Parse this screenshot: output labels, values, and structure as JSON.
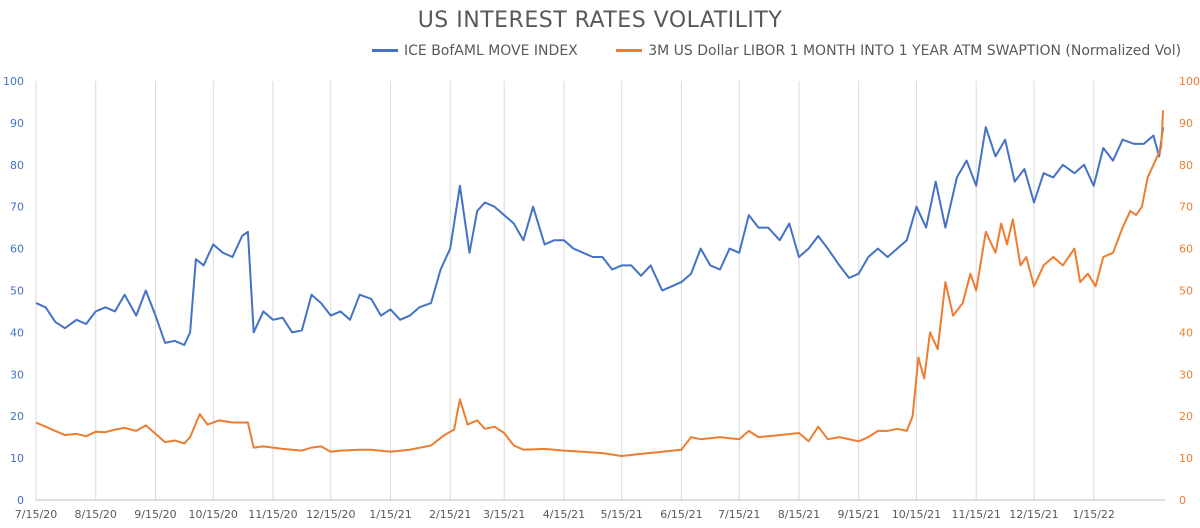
{
  "chart_data": {
    "type": "line",
    "title": "US INTEREST RATES VOLATILITY",
    "x_ticks": [
      "7/15/20",
      "8/15/20",
      "9/15/20",
      "10/15/20",
      "11/15/20",
      "12/15/20",
      "1/15/21",
      "2/15/21",
      "3/15/21",
      "4/15/21",
      "5/15/21",
      "6/15/21",
      "7/15/21",
      "8/15/21",
      "9/15/21",
      "10/15/21",
      "11/15/21",
      "12/15/21",
      "1/15/22"
    ],
    "y_left_ticks": [
      0,
      10,
      20,
      30,
      40,
      50,
      60,
      70,
      80,
      90,
      100
    ],
    "y_right_ticks": [
      0,
      10,
      20,
      30,
      40,
      50,
      60,
      70,
      80,
      90,
      100
    ],
    "ylim_left": [
      0,
      100
    ],
    "ylim_right": [
      0,
      100
    ],
    "grid": "vertical",
    "legend_position": "top",
    "series": [
      {
        "name": "ICE BofAML MOVE INDEX",
        "axis": "left",
        "color": "#4472C4",
        "points": [
          [
            "2020-07-15",
            47
          ],
          [
            "2020-07-20",
            46
          ],
          [
            "2020-07-25",
            42.5
          ],
          [
            "2020-07-30",
            41
          ],
          [
            "2020-08-05",
            43
          ],
          [
            "2020-08-10",
            42
          ],
          [
            "2020-08-15",
            45
          ],
          [
            "2020-08-20",
            46
          ],
          [
            "2020-08-25",
            45
          ],
          [
            "2020-08-30",
            49
          ],
          [
            "2020-09-05",
            44
          ],
          [
            "2020-09-10",
            50
          ],
          [
            "2020-09-15",
            44
          ],
          [
            "2020-09-20",
            37.5
          ],
          [
            "2020-09-25",
            38
          ],
          [
            "2020-09-30",
            37
          ],
          [
            "2020-10-03",
            40
          ],
          [
            "2020-10-06",
            57.5
          ],
          [
            "2020-10-10",
            56
          ],
          [
            "2020-10-15",
            61
          ],
          [
            "2020-10-20",
            59
          ],
          [
            "2020-10-25",
            58
          ],
          [
            "2020-10-30",
            63
          ],
          [
            "2020-11-02",
            64
          ],
          [
            "2020-11-05",
            40
          ],
          [
            "2020-11-10",
            45
          ],
          [
            "2020-11-15",
            43
          ],
          [
            "2020-11-20",
            43.5
          ],
          [
            "2020-11-25",
            40
          ],
          [
            "2020-11-30",
            40.5
          ],
          [
            "2020-12-05",
            49
          ],
          [
            "2020-12-10",
            47
          ],
          [
            "2020-12-15",
            44
          ],
          [
            "2020-12-20",
            45
          ],
          [
            "2020-12-25",
            43
          ],
          [
            "2020-12-30",
            49
          ],
          [
            "2021-01-05",
            48
          ],
          [
            "2021-01-10",
            44
          ],
          [
            "2021-01-15",
            45.5
          ],
          [
            "2021-01-20",
            43
          ],
          [
            "2021-01-25",
            44
          ],
          [
            "2021-01-30",
            46
          ],
          [
            "2021-02-05",
            47
          ],
          [
            "2021-02-10",
            55
          ],
          [
            "2021-02-15",
            60
          ],
          [
            "2021-02-20",
            75
          ],
          [
            "2021-02-25",
            59
          ],
          [
            "2021-03-01",
            69
          ],
          [
            "2021-03-05",
            71
          ],
          [
            "2021-03-10",
            70
          ],
          [
            "2021-03-15",
            68
          ],
          [
            "2021-03-20",
            66
          ],
          [
            "2021-03-25",
            62
          ],
          [
            "2021-03-30",
            70
          ],
          [
            "2021-04-05",
            61
          ],
          [
            "2021-04-10",
            62
          ],
          [
            "2021-04-15",
            62
          ],
          [
            "2021-04-20",
            60
          ],
          [
            "2021-04-25",
            59
          ],
          [
            "2021-04-30",
            58
          ],
          [
            "2021-05-05",
            58
          ],
          [
            "2021-05-10",
            55
          ],
          [
            "2021-05-15",
            56
          ],
          [
            "2021-05-20",
            56
          ],
          [
            "2021-05-25",
            53.5
          ],
          [
            "2021-05-30",
            56
          ],
          [
            "2021-06-05",
            50
          ],
          [
            "2021-06-10",
            51
          ],
          [
            "2021-06-15",
            52
          ],
          [
            "2021-06-20",
            54
          ],
          [
            "2021-06-25",
            60
          ],
          [
            "2021-06-30",
            56
          ],
          [
            "2021-07-05",
            55
          ],
          [
            "2021-07-10",
            60
          ],
          [
            "2021-07-15",
            59
          ],
          [
            "2021-07-20",
            68
          ],
          [
            "2021-07-25",
            65
          ],
          [
            "2021-07-30",
            65
          ],
          [
            "2021-08-05",
            62
          ],
          [
            "2021-08-10",
            66
          ],
          [
            "2021-08-15",
            58
          ],
          [
            "2021-08-20",
            60
          ],
          [
            "2021-08-25",
            63
          ],
          [
            "2021-08-30",
            60
          ],
          [
            "2021-09-05",
            56
          ],
          [
            "2021-09-10",
            53
          ],
          [
            "2021-09-15",
            54
          ],
          [
            "2021-09-20",
            58
          ],
          [
            "2021-09-25",
            60
          ],
          [
            "2021-09-30",
            58
          ],
          [
            "2021-10-05",
            60
          ],
          [
            "2021-10-10",
            62
          ],
          [
            "2021-10-15",
            70
          ],
          [
            "2021-10-20",
            65
          ],
          [
            "2021-10-25",
            76
          ],
          [
            "2021-10-30",
            65
          ],
          [
            "2021-11-05",
            77
          ],
          [
            "2021-11-10",
            81
          ],
          [
            "2021-11-15",
            75
          ],
          [
            "2021-11-20",
            89
          ],
          [
            "2021-11-25",
            82
          ],
          [
            "2021-11-30",
            86
          ],
          [
            "2021-12-05",
            76
          ],
          [
            "2021-12-10",
            79
          ],
          [
            "2021-12-15",
            71
          ],
          [
            "2021-12-20",
            78
          ],
          [
            "2021-12-25",
            77
          ],
          [
            "2021-12-30",
            80
          ],
          [
            "2022-01-05",
            78
          ],
          [
            "2022-01-10",
            80
          ],
          [
            "2022-01-15",
            75
          ],
          [
            "2022-01-20",
            84
          ],
          [
            "2022-01-25",
            81
          ],
          [
            "2022-01-30",
            86
          ],
          [
            "2022-02-05",
            85
          ],
          [
            "2022-02-10",
            85
          ],
          [
            "2022-02-15",
            87
          ],
          [
            "2022-02-18",
            82
          ],
          [
            "2022-02-20",
            89
          ]
        ]
      },
      {
        "name": "3M US Dollar LIBOR 1 MONTH INTO 1 YEAR ATM SWAPTION (Normalized Vol)",
        "axis": "right",
        "color": "#ED7D31",
        "points": [
          [
            "2020-07-15",
            18.5
          ],
          [
            "2020-07-20",
            17.5
          ],
          [
            "2020-07-25",
            16.5
          ],
          [
            "2020-07-30",
            15.5
          ],
          [
            "2020-08-05",
            15.8
          ],
          [
            "2020-08-10",
            15.2
          ],
          [
            "2020-08-15",
            16.3
          ],
          [
            "2020-08-20",
            16.2
          ],
          [
            "2020-08-25",
            16.8
          ],
          [
            "2020-08-30",
            17.2
          ],
          [
            "2020-09-05",
            16.5
          ],
          [
            "2020-09-10",
            17.8
          ],
          [
            "2020-09-15",
            15.8
          ],
          [
            "2020-09-20",
            13.8
          ],
          [
            "2020-09-25",
            14.2
          ],
          [
            "2020-09-30",
            13.5
          ],
          [
            "2020-10-03",
            15
          ],
          [
            "2020-10-08",
            20.5
          ],
          [
            "2020-10-12",
            18
          ],
          [
            "2020-10-18",
            19
          ],
          [
            "2020-10-25",
            18.5
          ],
          [
            "2020-11-02",
            18.5
          ],
          [
            "2020-11-05",
            12.5
          ],
          [
            "2020-11-10",
            12.8
          ],
          [
            "2020-11-20",
            12.2
          ],
          [
            "2020-11-30",
            11.8
          ],
          [
            "2020-12-05",
            12.5
          ],
          [
            "2020-12-10",
            12.8
          ],
          [
            "2020-12-15",
            11.5
          ],
          [
            "2020-12-20",
            11.8
          ],
          [
            "2020-12-30",
            12
          ],
          [
            "2021-01-05",
            12
          ],
          [
            "2021-01-15",
            11.5
          ],
          [
            "2021-01-25",
            12
          ],
          [
            "2021-02-05",
            13
          ],
          [
            "2021-02-12",
            15.5
          ],
          [
            "2021-02-17",
            16.8
          ],
          [
            "2021-02-20",
            24
          ],
          [
            "2021-02-24",
            18
          ],
          [
            "2021-03-01",
            19
          ],
          [
            "2021-03-05",
            17
          ],
          [
            "2021-03-10",
            17.5
          ],
          [
            "2021-03-15",
            16
          ],
          [
            "2021-03-20",
            13
          ],
          [
            "2021-03-25",
            12
          ],
          [
            "2021-04-05",
            12.2
          ],
          [
            "2021-04-15",
            11.8
          ],
          [
            "2021-04-25",
            11.5
          ],
          [
            "2021-05-05",
            11.2
          ],
          [
            "2021-05-15",
            10.5
          ],
          [
            "2021-05-25",
            11
          ],
          [
            "2021-06-05",
            11.5
          ],
          [
            "2021-06-15",
            12
          ],
          [
            "2021-06-20",
            15
          ],
          [
            "2021-06-25",
            14.5
          ],
          [
            "2021-07-05",
            15
          ],
          [
            "2021-07-15",
            14.5
          ],
          [
            "2021-07-20",
            16.5
          ],
          [
            "2021-07-25",
            15
          ],
          [
            "2021-08-05",
            15.5
          ],
          [
            "2021-08-15",
            16
          ],
          [
            "2021-08-20",
            14
          ],
          [
            "2021-08-25",
            17.5
          ],
          [
            "2021-08-30",
            14.5
          ],
          [
            "2021-09-05",
            15
          ],
          [
            "2021-09-15",
            14
          ],
          [
            "2021-09-20",
            15
          ],
          [
            "2021-09-25",
            16.5
          ],
          [
            "2021-09-30",
            16.5
          ],
          [
            "2021-10-05",
            17
          ],
          [
            "2021-10-10",
            16.5
          ],
          [
            "2021-10-13",
            20
          ],
          [
            "2021-10-16",
            34
          ],
          [
            "2021-10-19",
            29
          ],
          [
            "2021-10-22",
            40
          ],
          [
            "2021-10-26",
            36
          ],
          [
            "2021-10-30",
            52
          ],
          [
            "2021-11-03",
            44
          ],
          [
            "2021-11-08",
            47
          ],
          [
            "2021-11-12",
            54
          ],
          [
            "2021-11-15",
            50
          ],
          [
            "2021-11-20",
            64
          ],
          [
            "2021-11-25",
            59
          ],
          [
            "2021-11-28",
            66
          ],
          [
            "2021-12-01",
            61
          ],
          [
            "2021-12-04",
            67
          ],
          [
            "2021-12-08",
            56
          ],
          [
            "2021-12-11",
            58
          ],
          [
            "2021-12-15",
            51
          ],
          [
            "2021-12-20",
            56
          ],
          [
            "2021-12-25",
            58
          ],
          [
            "2021-12-30",
            56
          ],
          [
            "2022-01-05",
            60
          ],
          [
            "2022-01-08",
            52
          ],
          [
            "2022-01-12",
            54
          ],
          [
            "2022-01-16",
            51
          ],
          [
            "2022-01-20",
            58
          ],
          [
            "2022-01-25",
            59
          ],
          [
            "2022-01-30",
            65
          ],
          [
            "2022-02-03",
            69
          ],
          [
            "2022-02-06",
            68
          ],
          [
            "2022-02-09",
            70
          ],
          [
            "2022-02-12",
            77
          ],
          [
            "2022-02-17",
            82
          ],
          [
            "2022-02-19",
            84
          ],
          [
            "2022-02-20",
            93
          ]
        ]
      }
    ]
  }
}
